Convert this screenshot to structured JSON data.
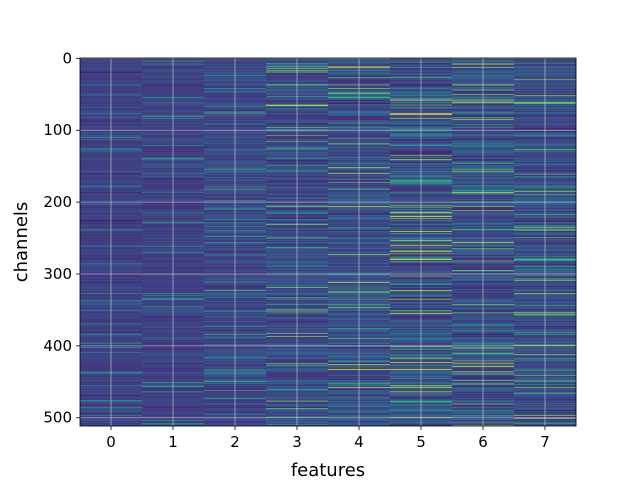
{
  "chart_data": {
    "type": "heatmap",
    "title": "",
    "xlabel": "features",
    "ylabel": "channels",
    "x_ticks": [
      "0",
      "1",
      "2",
      "3",
      "4",
      "5",
      "6",
      "7"
    ],
    "y_ticks": [
      "0",
      "100",
      "200",
      "300",
      "400",
      "500"
    ],
    "y_tick_values": [
      0,
      100,
      200,
      300,
      400,
      500
    ],
    "n_columns": 8,
    "n_rows": 512,
    "ylim": [
      511.5,
      -0.5
    ],
    "xlim": [
      -0.5,
      7.5
    ],
    "grid": true,
    "colormap": "viridis",
    "column_variation": [
      0.18,
      0.2,
      0.28,
      0.38,
      0.46,
      0.55,
      0.5,
      0.4
    ],
    "column_base": [
      0.2,
      0.2,
      0.22,
      0.24,
      0.26,
      0.26,
      0.26,
      0.25
    ],
    "grid_color": "#d9d9d9",
    "background_color": "#3b518b"
  }
}
